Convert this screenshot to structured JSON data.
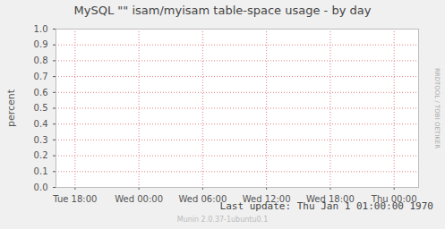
{
  "chart_data": {
    "type": "line",
    "title": "MySQL \"\" isam/myisam table-space usage - by day",
    "y_label": "percent",
    "watermark": "RRDTOOL / TOBI OETIKER",
    "caption": "Last update: Thu Jan  1 01:00:00 1970",
    "credit": "Munin 2.0.37-1ubuntu0.1",
    "x": [],
    "values": [],
    "color": "#00cc00",
    "xlim": [
      -1.8,
      32.3
    ],
    "xticks": [
      {
        "value": 0,
        "label": "Tue 18:00"
      },
      {
        "value": 6,
        "label": "Wed 00:00"
      },
      {
        "value": 12,
        "label": "Wed 06:00"
      },
      {
        "value": 18,
        "label": "Wed 12:00"
      },
      {
        "value": 24,
        "label": "Wed 18:00"
      },
      {
        "value": 30,
        "label": "Thu 00:00"
      }
    ],
    "ylim": [
      0,
      1
    ],
    "yticks": [
      {
        "value": 0,
        "label": "0.0"
      },
      0.1,
      0.2,
      0.3,
      0.4,
      0.5,
      0.6,
      0.7,
      0.8,
      0.9,
      {
        "value": 1,
        "label": "1.0"
      }
    ],
    "grid": true
  }
}
